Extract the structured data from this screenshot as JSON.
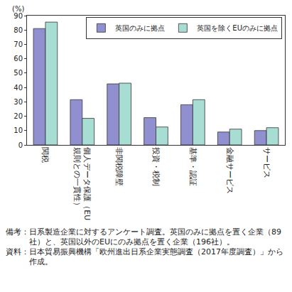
{
  "chart_data": {
    "type": "bar",
    "ylabel": "(%)",
    "categories": [
      "関税",
      "個人データ保護（EU規則との一貫性）",
      "非関税障壁",
      "投資・税制",
      "基準・認証",
      "金融サービス",
      "サービス"
    ],
    "series": [
      {
        "name": "英国のみに拠点",
        "color": "#9090d0",
        "values": [
          81,
          31.5,
          42.5,
          19,
          28,
          9,
          10
        ]
      },
      {
        "name": "英国を除くEUのみに拠点",
        "color": "#a8ddd4",
        "values": [
          85.5,
          18.5,
          43,
          12.5,
          31.5,
          11,
          12
        ]
      }
    ],
    "ylim": [
      0,
      90
    ],
    "yticks": [
      0,
      10,
      20,
      30,
      40,
      50,
      60,
      70,
      80,
      90
    ],
    "grid": false,
    "legend": "top right",
    "annotations": [
      "備考：日系製造企業に対するアンケート調査。英国のみに拠点を置く企業（89社）と、英国以外のEUにのみ拠点を置く企業（196社）。",
      "資料：日本貿易振興機構「欧州進出日系企業実態調査（2017年度調査）」から作成。"
    ]
  }
}
